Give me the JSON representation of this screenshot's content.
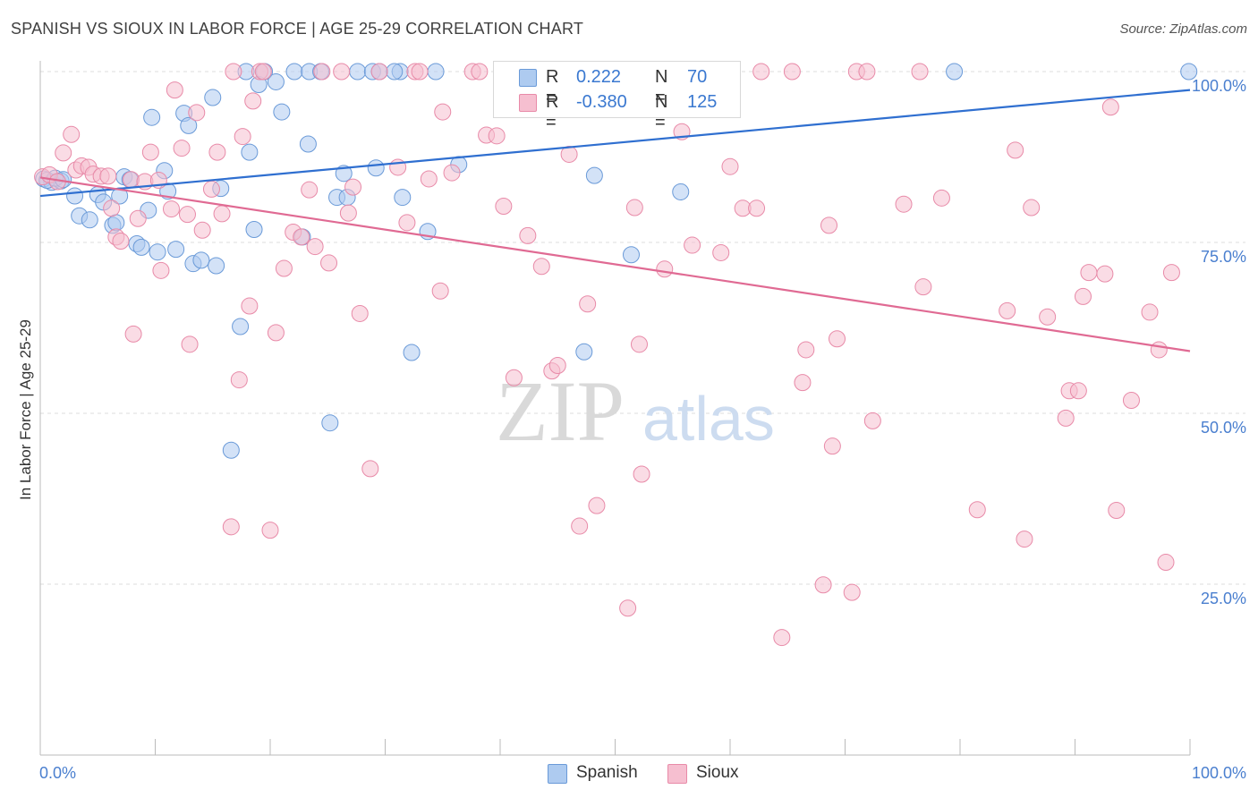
{
  "title": "SPANISH VS SIOUX IN LABOR FORCE | AGE 25-29 CORRELATION CHART",
  "source": "Source: ZipAtlas.com",
  "watermark": {
    "zip": "ZIP",
    "atlas": "atlas"
  },
  "colors": {
    "spanish_fill": "#aecbf0",
    "spanish_stroke": "#6a9ad8",
    "spanish_line": "#2f6fd0",
    "sioux_fill": "#f6bfd0",
    "sioux_stroke": "#e88aa8",
    "sioux_line": "#e06a93",
    "tick_label": "#4a7fcf",
    "grid": "#dddddd"
  },
  "legend": {
    "r_label": "R =",
    "n_label": "N =",
    "rows": [
      {
        "series": "Spanish",
        "r": "0.222",
        "n": "70"
      },
      {
        "series": "Sioux",
        "r": "-0.380",
        "n": "125"
      }
    ]
  },
  "chart_data": {
    "type": "scatter",
    "title": "SPANISH VS SIOUX IN LABOR FORCE | AGE 25-29 CORRELATION CHART",
    "xlabel": "",
    "ylabel": "In Labor Force | Age 25-29",
    "xlim": [
      0,
      100
    ],
    "ylim": [
      0,
      100
    ],
    "x_tick_labels": [
      {
        "value": 0,
        "label": "0.0%"
      },
      {
        "value": 100,
        "label": "100.0%"
      }
    ],
    "y_tick_labels": [
      {
        "value": 25,
        "label": "25.0%"
      },
      {
        "value": 50,
        "label": "50.0%"
      },
      {
        "value": 75,
        "label": "75.0%"
      },
      {
        "value": 100,
        "label": "100.0%"
      }
    ],
    "grid": true,
    "legend_position": "bottom",
    "series": [
      {
        "name": "Spanish",
        "trend": {
          "x": [
            0,
            100
          ],
          "y": [
            81.8,
            97.3
          ]
        },
        "points": [
          [
            0.3,
            84.3
          ],
          [
            1.0,
            83.8
          ],
          [
            1.8,
            84.0
          ],
          [
            3.0,
            81.8
          ],
          [
            3.4,
            78.9
          ],
          [
            4.3,
            78.3
          ],
          [
            5.0,
            82.0
          ],
          [
            5.5,
            80.9
          ],
          [
            6.3,
            77.5
          ],
          [
            6.6,
            77.9
          ],
          [
            6.9,
            81.8
          ],
          [
            7.3,
            84.6
          ],
          [
            7.8,
            84.2
          ],
          [
            8.4,
            74.8
          ],
          [
            8.8,
            74.3
          ],
          [
            9.4,
            79.7
          ],
          [
            9.7,
            93.3
          ],
          [
            10.2,
            73.6
          ],
          [
            10.8,
            85.5
          ],
          [
            11.1,
            82.5
          ],
          [
            11.8,
            74.0
          ],
          [
            12.5,
            93.9
          ],
          [
            12.9,
            92.1
          ],
          [
            13.3,
            71.9
          ],
          [
            14.0,
            72.4
          ],
          [
            15.0,
            96.2
          ],
          [
            15.3,
            71.6
          ],
          [
            15.7,
            82.9
          ],
          [
            17.4,
            62.7
          ],
          [
            17.9,
            100.0
          ],
          [
            18.2,
            88.2
          ],
          [
            18.6,
            76.9
          ],
          [
            19.0,
            98.1
          ],
          [
            19.5,
            100.0
          ],
          [
            20.5,
            98.5
          ],
          [
            21.0,
            94.1
          ],
          [
            22.1,
            100.0
          ],
          [
            22.8,
            75.8
          ],
          [
            23.3,
            89.4
          ],
          [
            23.4,
            100.0
          ],
          [
            24.4,
            100.0
          ],
          [
            25.2,
            48.6
          ],
          [
            25.8,
            81.6
          ],
          [
            26.4,
            85.1
          ],
          [
            26.7,
            81.6
          ],
          [
            27.6,
            100.0
          ],
          [
            28.9,
            100.0
          ],
          [
            29.2,
            85.9
          ],
          [
            29.5,
            100.0
          ],
          [
            31.3,
            100.0
          ],
          [
            31.5,
            81.6
          ],
          [
            32.3,
            58.9
          ],
          [
            33.7,
            76.6
          ],
          [
            34.4,
            100.0
          ],
          [
            36.4,
            86.4
          ],
          [
            41.3,
            100.0
          ],
          [
            47.3,
            59.0
          ],
          [
            48.2,
            84.8
          ],
          [
            51.4,
            73.2
          ],
          [
            54.7,
            100.0
          ],
          [
            55.7,
            82.4
          ],
          [
            79.5,
            100.0
          ],
          [
            99.9,
            100.0
          ],
          [
            0.6,
            84.1
          ],
          [
            1.3,
            84.4
          ],
          [
            2.0,
            84.2
          ],
          [
            16.6,
            44.6
          ],
          [
            30.8,
            100.0
          ],
          [
            40.6,
            100.0
          ],
          [
            53.1,
            100.0
          ]
        ]
      },
      {
        "name": "Sioux",
        "trend": {
          "x": [
            0,
            100
          ],
          "y": [
            84.5,
            59.1
          ]
        },
        "points": [
          [
            0.2,
            84.6
          ],
          [
            0.8,
            84.9
          ],
          [
            1.5,
            83.9
          ],
          [
            2.0,
            88.1
          ],
          [
            2.7,
            90.8
          ],
          [
            3.1,
            85.6
          ],
          [
            3.6,
            86.2
          ],
          [
            4.2,
            86.0
          ],
          [
            4.6,
            85.0
          ],
          [
            5.3,
            84.7
          ],
          [
            5.9,
            84.7
          ],
          [
            6.2,
            80.0
          ],
          [
            6.6,
            75.8
          ],
          [
            7.0,
            75.2
          ],
          [
            7.9,
            84.2
          ],
          [
            8.1,
            61.6
          ],
          [
            8.5,
            78.5
          ],
          [
            9.1,
            83.9
          ],
          [
            9.6,
            88.2
          ],
          [
            10.3,
            84.1
          ],
          [
            10.5,
            70.9
          ],
          [
            11.4,
            79.9
          ],
          [
            11.7,
            97.3
          ],
          [
            12.3,
            88.8
          ],
          [
            12.8,
            79.1
          ],
          [
            13.0,
            60.1
          ],
          [
            13.6,
            94.0
          ],
          [
            14.1,
            76.8
          ],
          [
            14.9,
            82.8
          ],
          [
            15.4,
            88.2
          ],
          [
            15.8,
            79.2
          ],
          [
            16.6,
            33.4
          ],
          [
            16.8,
            100.0
          ],
          [
            17.3,
            54.9
          ],
          [
            17.6,
            90.5
          ],
          [
            18.2,
            65.7
          ],
          [
            18.5,
            95.7
          ],
          [
            19.1,
            100.0
          ],
          [
            19.4,
            100.0
          ],
          [
            20.0,
            32.9
          ],
          [
            20.5,
            61.8
          ],
          [
            21.2,
            71.2
          ],
          [
            22.0,
            76.5
          ],
          [
            22.7,
            75.8
          ],
          [
            23.4,
            82.7
          ],
          [
            23.9,
            74.4
          ],
          [
            24.5,
            100.0
          ],
          [
            25.1,
            72.0
          ],
          [
            26.2,
            100.0
          ],
          [
            26.8,
            79.3
          ],
          [
            27.2,
            83.1
          ],
          [
            27.8,
            64.6
          ],
          [
            28.7,
            41.9
          ],
          [
            29.5,
            100.0
          ],
          [
            31.1,
            86.0
          ],
          [
            31.9,
            77.9
          ],
          [
            32.6,
            100.0
          ],
          [
            33.0,
            100.0
          ],
          [
            33.8,
            84.3
          ],
          [
            34.8,
            67.9
          ],
          [
            35.0,
            94.1
          ],
          [
            35.8,
            85.2
          ],
          [
            37.6,
            100.0
          ],
          [
            38.2,
            100.0
          ],
          [
            38.8,
            90.7
          ],
          [
            39.7,
            90.6
          ],
          [
            40.3,
            80.3
          ],
          [
            41.2,
            55.2
          ],
          [
            42.4,
            76.0
          ],
          [
            43.6,
            71.5
          ],
          [
            44.5,
            56.2
          ],
          [
            45.0,
            57.0
          ],
          [
            46.0,
            87.9
          ],
          [
            46.9,
            33.5
          ],
          [
            47.6,
            66.0
          ],
          [
            48.4,
            36.5
          ],
          [
            50.0,
            100.0
          ],
          [
            51.1,
            21.5
          ],
          [
            51.7,
            80.1
          ],
          [
            52.1,
            60.1
          ],
          [
            52.3,
            41.1
          ],
          [
            54.3,
            71.1
          ],
          [
            55.8,
            91.2
          ],
          [
            56.7,
            74.6
          ],
          [
            57.7,
            100.0
          ],
          [
            59.2,
            73.5
          ],
          [
            60.0,
            86.1
          ],
          [
            61.1,
            80.0
          ],
          [
            62.3,
            80.0
          ],
          [
            62.7,
            100.0
          ],
          [
            64.5,
            17.2
          ],
          [
            65.4,
            100.0
          ],
          [
            66.3,
            54.5
          ],
          [
            66.6,
            59.3
          ],
          [
            68.1,
            24.9
          ],
          [
            68.6,
            77.5
          ],
          [
            68.9,
            45.2
          ],
          [
            69.3,
            60.9
          ],
          [
            70.6,
            23.8
          ],
          [
            71.0,
            100.0
          ],
          [
            71.9,
            100.0
          ],
          [
            72.4,
            48.9
          ],
          [
            75.1,
            80.6
          ],
          [
            76.5,
            100.0
          ],
          [
            76.8,
            68.5
          ],
          [
            78.4,
            81.5
          ],
          [
            81.5,
            35.9
          ],
          [
            84.1,
            65.0
          ],
          [
            84.8,
            88.5
          ],
          [
            85.6,
            31.6
          ],
          [
            86.2,
            80.1
          ],
          [
            87.6,
            64.1
          ],
          [
            89.2,
            49.3
          ],
          [
            89.5,
            53.3
          ],
          [
            90.3,
            53.3
          ],
          [
            90.7,
            67.1
          ],
          [
            91.2,
            70.6
          ],
          [
            92.6,
            70.4
          ],
          [
            93.1,
            94.8
          ],
          [
            93.6,
            35.8
          ],
          [
            94.9,
            51.9
          ],
          [
            96.5,
            64.8
          ],
          [
            97.3,
            59.3
          ],
          [
            97.9,
            28.2
          ],
          [
            98.4,
            70.6
          ]
        ]
      }
    ]
  }
}
